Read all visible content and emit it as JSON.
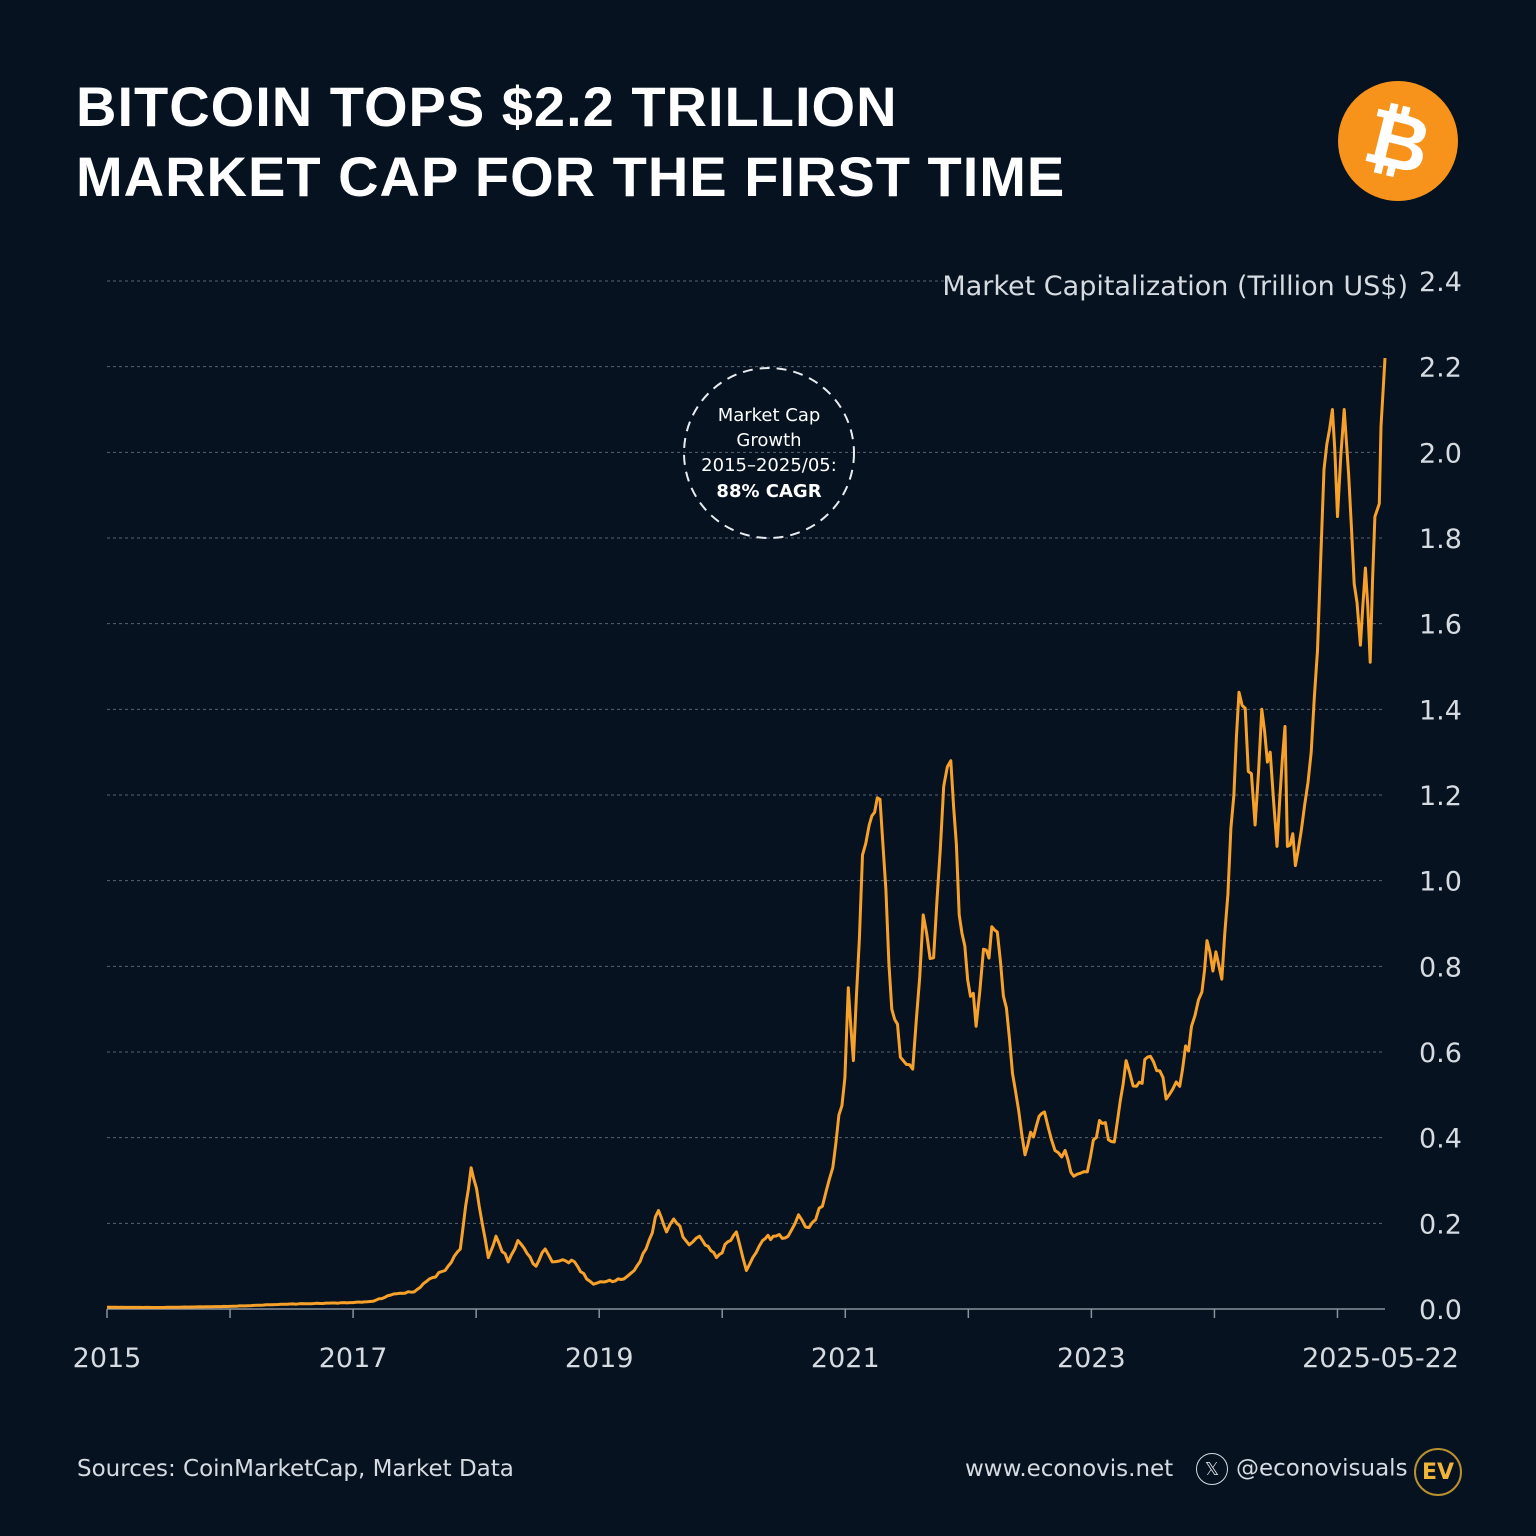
{
  "title_line1": "BITCOIN TOPS $2.2 TRILLION",
  "title_line2": "MARKET CAP FOR THE FIRST TIME",
  "logo_icon": "bitcoin-icon",
  "logo_symbol": "₿",
  "annotation": {
    "line1": "Market Cap",
    "line2": "Growth",
    "line3": "2015–2025/05:",
    "line4": "88% CAGR"
  },
  "footer": {
    "sources": "Sources: CoinMarketCap, Market Data",
    "website": "www.econovis.net",
    "handle": "@econovisuals",
    "x_icon": "𝕏",
    "brand": "EV"
  },
  "colors": {
    "background": "#06121f",
    "line": "#f7a12a",
    "bitcoin": "#f7931a"
  },
  "chart_data": {
    "type": "line",
    "title": "BITCOIN TOPS $2.2 TRILLION MARKET CAP FOR THE FIRST TIME",
    "ylabel": "Market Capitalization (Trillion US$)",
    "ylim": [
      0,
      2.4
    ],
    "yticks": [
      "0.0",
      "0.2",
      "0.4",
      "0.6",
      "0.8",
      "1.0",
      "1.2",
      "1.4",
      "1.6",
      "1.8",
      "2.0",
      "2.2",
      "2.4"
    ],
    "y_axis_side": "right",
    "xlim": [
      "2015-01-01",
      "2025-05-22"
    ],
    "xticks": [
      "2015",
      "2017",
      "2019",
      "2021",
      "2023",
      "2025-05-22"
    ],
    "grid": "horizontal dashed",
    "series": [
      {
        "points": [
          [
            "2015-01-01",
            0.004
          ],
          [
            "2015-06-01",
            0.0035
          ],
          [
            "2016-01-01",
            0.006
          ],
          [
            "2016-06-01",
            0.011
          ],
          [
            "2017-01-01",
            0.015
          ],
          [
            "2017-03-01",
            0.018
          ],
          [
            "2017-05-01",
            0.035
          ],
          [
            "2017-07-01",
            0.04
          ],
          [
            "2017-08-15",
            0.07
          ],
          [
            "2017-10-01",
            0.09
          ],
          [
            "2017-11-15",
            0.14
          ],
          [
            "2017-12-17",
            0.33
          ],
          [
            "2018-01-10",
            0.24
          ],
          [
            "2018-02-06",
            0.12
          ],
          [
            "2018-03-01",
            0.17
          ],
          [
            "2018-04-06",
            0.11
          ],
          [
            "2018-05-05",
            0.16
          ],
          [
            "2018-06-28",
            0.1
          ],
          [
            "2018-07-25",
            0.14
          ],
          [
            "2018-08-15",
            0.11
          ],
          [
            "2018-09-15",
            0.115
          ],
          [
            "2018-10-20",
            0.11
          ],
          [
            "2018-11-25",
            0.07
          ],
          [
            "2018-12-15",
            0.058
          ],
          [
            "2019-01-15",
            0.063
          ],
          [
            "2019-03-15",
            0.07
          ],
          [
            "2019-04-15",
            0.09
          ],
          [
            "2019-05-20",
            0.14
          ],
          [
            "2019-06-26",
            0.23
          ],
          [
            "2019-07-20",
            0.18
          ],
          [
            "2019-08-10",
            0.21
          ],
          [
            "2019-09-25",
            0.15
          ],
          [
            "2019-10-26",
            0.17
          ],
          [
            "2019-12-15",
            0.12
          ],
          [
            "2020-02-12",
            0.18
          ],
          [
            "2020-03-13",
            0.09
          ],
          [
            "2020-04-30",
            0.16
          ],
          [
            "2020-06-01",
            0.17
          ],
          [
            "2020-07-15",
            0.17
          ],
          [
            "2020-08-15",
            0.22
          ],
          [
            "2020-09-15",
            0.19
          ],
          [
            "2020-10-25",
            0.24
          ],
          [
            "2020-11-25",
            0.33
          ],
          [
            "2020-12-31",
            0.54
          ],
          [
            "2021-01-10",
            0.75
          ],
          [
            "2021-01-25",
            0.58
          ],
          [
            "2021-02-21",
            1.06
          ],
          [
            "2021-03-13",
            1.13
          ],
          [
            "2021-04-14",
            1.19
          ],
          [
            "2021-05-19",
            0.7
          ],
          [
            "2021-06-22",
            0.58
          ],
          [
            "2021-07-20",
            0.56
          ],
          [
            "2021-08-20",
            0.92
          ],
          [
            "2021-09-20",
            0.82
          ],
          [
            "2021-10-20",
            1.22
          ],
          [
            "2021-11-10",
            1.28
          ],
          [
            "2021-12-05",
            0.92
          ],
          [
            "2022-01-24",
            0.66
          ],
          [
            "2022-02-15",
            0.84
          ],
          [
            "2022-03-28",
            0.88
          ],
          [
            "2022-05-12",
            0.55
          ],
          [
            "2022-06-18",
            0.36
          ],
          [
            "2022-07-30",
            0.45
          ],
          [
            "2022-08-15",
            0.46
          ],
          [
            "2022-09-15",
            0.37
          ],
          [
            "2022-10-15",
            0.37
          ],
          [
            "2022-11-10",
            0.31
          ],
          [
            "2022-12-20",
            0.32
          ],
          [
            "2023-01-25",
            0.44
          ],
          [
            "2023-03-10",
            0.39
          ],
          [
            "2023-04-14",
            0.58
          ],
          [
            "2023-05-15",
            0.52
          ],
          [
            "2023-06-25",
            0.59
          ],
          [
            "2023-08-20",
            0.5
          ],
          [
            "2023-09-20",
            0.52
          ],
          [
            "2023-10-25",
            0.66
          ],
          [
            "2023-11-25",
            0.74
          ],
          [
            "2023-12-10",
            0.86
          ],
          [
            "2024-01-23",
            0.77
          ],
          [
            "2024-02-28",
            1.2
          ],
          [
            "2024-03-14",
            1.44
          ],
          [
            "2024-04-20",
            1.25
          ],
          [
            "2024-05-01",
            1.13
          ],
          [
            "2024-05-21",
            1.4
          ],
          [
            "2024-06-15",
            1.3
          ],
          [
            "2024-07-05",
            1.08
          ],
          [
            "2024-07-29",
            1.36
          ],
          [
            "2024-08-05",
            1.08
          ],
          [
            "2024-09-06",
            1.07
          ],
          [
            "2024-10-15",
            1.3
          ],
          [
            "2024-11-12",
            1.75
          ],
          [
            "2024-11-22",
            1.96
          ],
          [
            "2024-12-17",
            2.1
          ],
          [
            "2025-01-01",
            1.85
          ],
          [
            "2025-01-21",
            2.1
          ],
          [
            "2025-02-03",
            1.95
          ],
          [
            "2025-02-28",
            1.65
          ],
          [
            "2025-03-10",
            1.55
          ],
          [
            "2025-03-25",
            1.73
          ],
          [
            "2025-04-08",
            1.51
          ],
          [
            "2025-04-22",
            1.85
          ],
          [
            "2025-05-05",
            1.88
          ],
          [
            "2025-05-10",
            2.06
          ],
          [
            "2025-05-22",
            2.22
          ]
        ]
      }
    ]
  }
}
